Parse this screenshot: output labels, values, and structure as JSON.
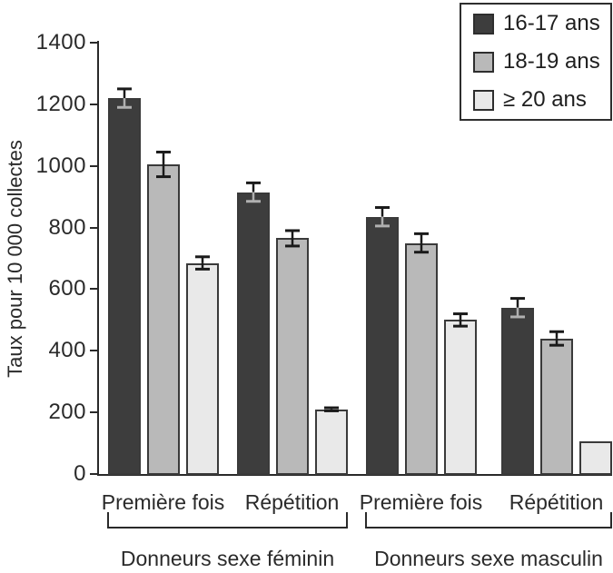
{
  "chart_data": {
    "type": "bar",
    "title": "",
    "ylabel": "Taux pour 10 000 collectes",
    "ylim": [
      0,
      1400
    ],
    "yticks": [
      0,
      200,
      400,
      600,
      800,
      1000,
      1200,
      1400
    ],
    "grid": false,
    "legend_position": "top-right",
    "group_labels": [
      "Donneurs sexe féminin",
      "Donneurs sexe masculin"
    ],
    "categories": [
      "Première fois",
      "Répétition",
      "Première fois",
      "Répétition"
    ],
    "category_group_index": [
      0,
      0,
      1,
      1
    ],
    "series": [
      {
        "name": "16-17 ans",
        "color": "#3d3d3d",
        "values": [
          1220,
          915,
          835,
          540
        ],
        "errors": [
          30,
          30,
          30,
          30
        ]
      },
      {
        "name": "18-19 ans",
        "color": "#b9b9b9",
        "values": [
          1005,
          765,
          750,
          440
        ],
        "errors": [
          40,
          25,
          30,
          22
        ]
      },
      {
        "name": "≥ 20 ans",
        "color": "#e9e9e9",
        "values": [
          685,
          210,
          500,
          105
        ],
        "errors": [
          20,
          5,
          20,
          0
        ]
      }
    ],
    "error_bar_color": "#1a1a1a",
    "error_bar_inner_on_dark": "#b0b0b0",
    "axis_color": "#2a2a2a"
  }
}
